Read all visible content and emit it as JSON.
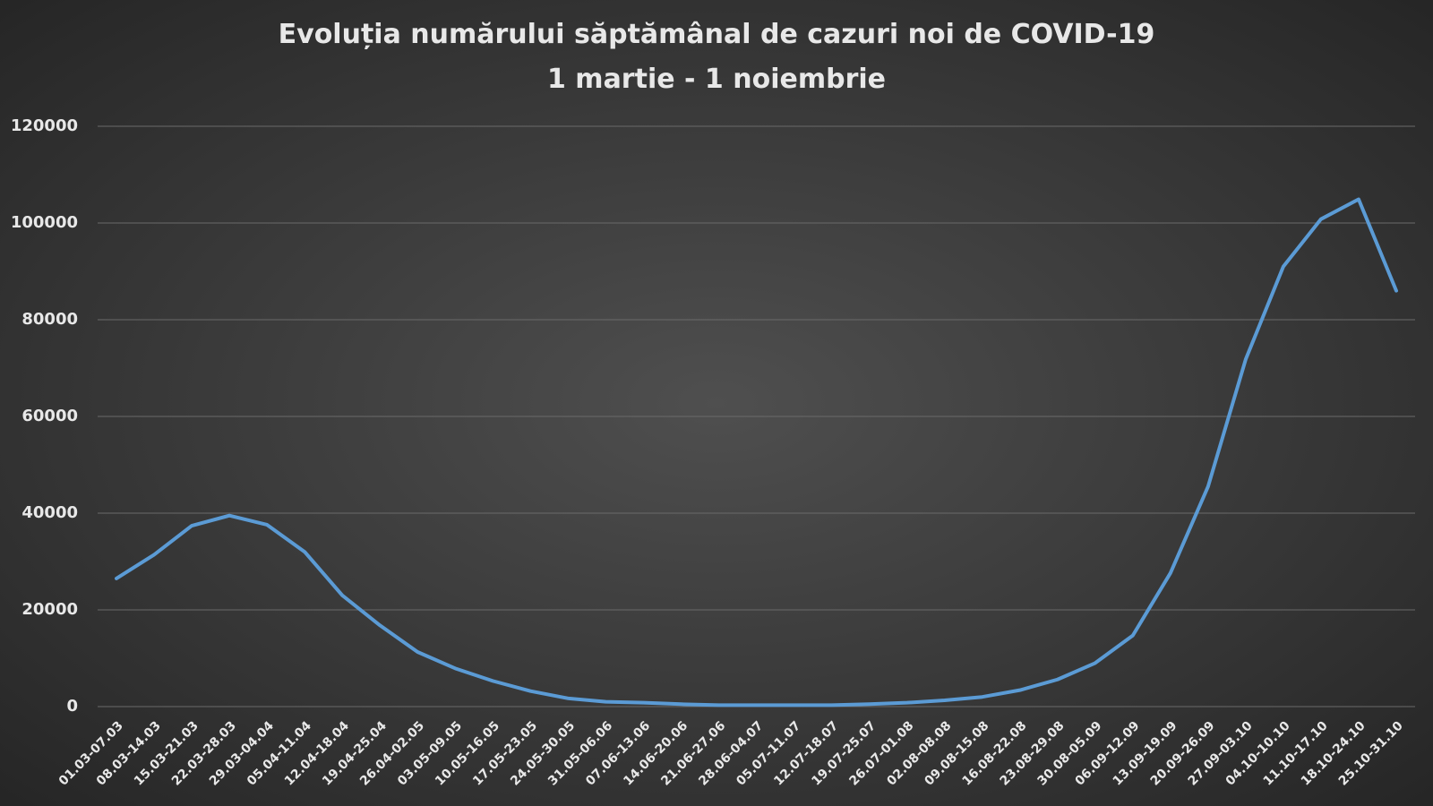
{
  "chart_data": {
    "type": "line",
    "title": "Evoluția numărului săptămânal de cazuri noi de COVID-19",
    "subtitle": "1 martie - 1 noiembrie",
    "categories": [
      "01.03-07.03",
      "08.03-14.03",
      "15.03-21.03",
      "22.03-28.03",
      "29.03-04.04",
      "05.04-11.04",
      "12.04-18.04",
      "19.04-25.04",
      "26.04-02.05",
      "03.05-09.05",
      "10.05-16.05",
      "17.05-23.05",
      "24.05-30.05",
      "31.05-06.06",
      "07.06-13.06",
      "14.06-20.06",
      "21.06-27.06",
      "28.06-04.07",
      "05.07-11.07",
      "12.07-18.07",
      "19.07-25.07",
      "26.07-01.08",
      "02.08-08.08",
      "09.08-15.08",
      "16.08-22.08",
      "23.08-29.08",
      "30.08-05.09",
      "06.09-12.09",
      "13.09-19.09",
      "20.09-26.09",
      "27.09-03.10",
      "04.10-10.10",
      "11.10-17.10",
      "18.10-24.10",
      "25.10-31.10"
    ],
    "values": [
      26500,
      31400,
      37400,
      39500,
      37600,
      32000,
      23000,
      16800,
      11300,
      7900,
      5300,
      3200,
      1700,
      1000,
      800,
      500,
      300,
      300,
      300,
      300,
      500,
      800,
      1300,
      2000,
      3400,
      5600,
      9000,
      14700,
      27600,
      45500,
      71800,
      91000,
      100800,
      104900,
      86000
    ],
    "color": "#5b9bd5",
    "ylim": [
      0,
      120000
    ],
    "yticks": [
      0,
      20000,
      40000,
      60000,
      80000,
      100000,
      120000
    ],
    "grid": true
  }
}
